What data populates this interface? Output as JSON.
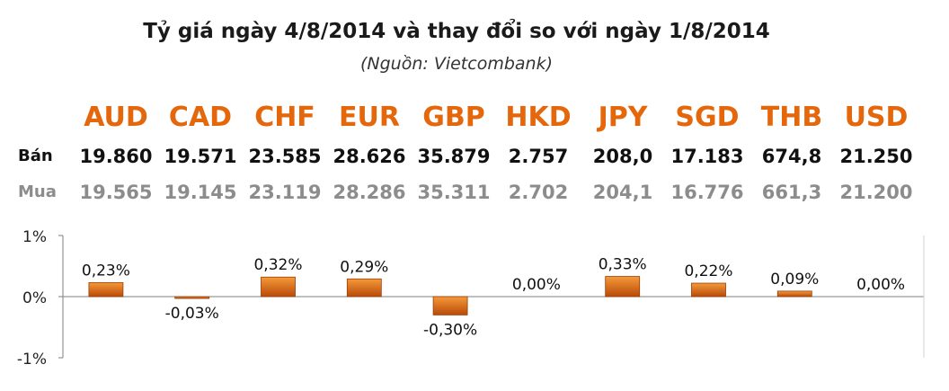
{
  "title": "Tỷ giá ngày 4/8/2014 và thay đổi so với ngày 1/8/2014",
  "subtitle": "(Nguồn: Vietcombank)",
  "rows": {
    "ban_label": "Bán",
    "mua_label": "Mua"
  },
  "currencies": [
    {
      "code": "AUD",
      "ban": "19.860",
      "mua": "19.565"
    },
    {
      "code": "CAD",
      "ban": "19.571",
      "mua": "19.145"
    },
    {
      "code": "CHF",
      "ban": "23.585",
      "mua": "23.119"
    },
    {
      "code": "EUR",
      "ban": "28.626",
      "mua": "28.286"
    },
    {
      "code": "GBP",
      "ban": "35.879",
      "mua": "35.311"
    },
    {
      "code": "HKD",
      "ban": "2.757",
      "mua": "2.702"
    },
    {
      "code": "JPY",
      "ban": "208,0",
      "mua": "204,1"
    },
    {
      "code": "SGD",
      "ban": "17.183",
      "mua": "16.776"
    },
    {
      "code": "THB",
      "ban": "674,8",
      "mua": "661,3"
    },
    {
      "code": "USD",
      "ban": "21.250",
      "mua": "21.200"
    }
  ],
  "colors": {
    "accent": "#e4670c",
    "bar_light": "#f59a3a",
    "bar_dark": "#b84a08",
    "mua_text": "#8c8c8c"
  },
  "chart_data": {
    "type": "bar",
    "categories": [
      "AUD",
      "CAD",
      "CHF",
      "EUR",
      "GBP",
      "HKD",
      "JPY",
      "SGD",
      "THB",
      "USD"
    ],
    "values": [
      0.23,
      -0.03,
      0.32,
      0.29,
      -0.3,
      0.0,
      0.33,
      0.22,
      0.09,
      0.0
    ],
    "value_labels": [
      "0,23%",
      "-0,03%",
      "0,32%",
      "0,29%",
      "-0,30%",
      "0,00%",
      "0,33%",
      "0,22%",
      "0,09%",
      "0,00%"
    ],
    "ylim": [
      -1,
      1
    ],
    "yticks": [
      "1%",
      "0%",
      "-1%"
    ],
    "grid": false
  }
}
